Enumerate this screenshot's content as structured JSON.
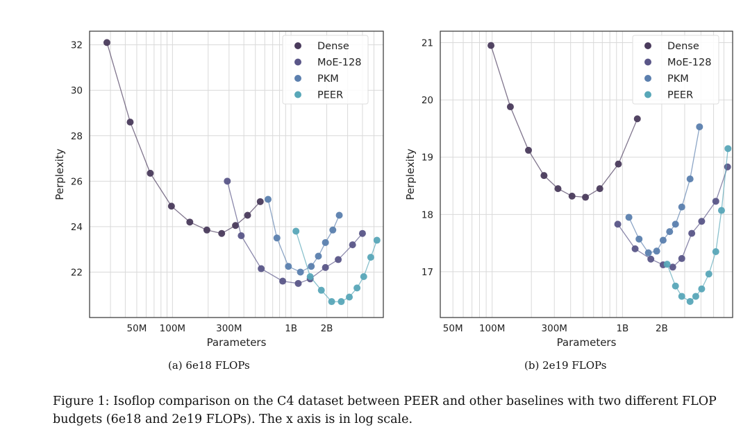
{
  "figure": {
    "caption_label": "Figure 1:",
    "caption_text": "Isoflop comparison on the C4 dataset between PEER and other baselines with two different FLOP budgets (6e18 and 2e19 FLOPs). The x axis is in log scale."
  },
  "colors": {
    "Dense": "#4a3b5c",
    "MoE-128": "#5a5688",
    "PKM": "#5b7fae",
    "PEER": "#58a7b8",
    "grid": "#d9d9d9",
    "axis": "#333333"
  },
  "chart_data": [
    {
      "type": "line",
      "subcaption": "(a) 6e18 FLOPs",
      "xlabel": "Parameters",
      "ylabel": "Perplexity",
      "xscale": "log",
      "xlim": [
        20000000,
        6000000000
      ],
      "ylim": [
        20,
        32.6
      ],
      "x_ticks": [
        {
          "value": 50000000,
          "label": "50M"
        },
        {
          "value": 100000000,
          "label": "100M"
        },
        {
          "value": 300000000,
          "label": "300M"
        },
        {
          "value": 1000000000,
          "label": "1B"
        },
        {
          "value": 2000000000,
          "label": "2B"
        }
      ],
      "y_ticks": [
        22,
        24,
        26,
        28,
        30,
        32
      ],
      "grid": true,
      "legend_position": "top-right",
      "series": [
        {
          "name": "Dense",
          "points": [
            [
              28000000,
              32.1
            ],
            [
              44000000,
              28.6
            ],
            [
              65000000,
              26.35
            ],
            [
              98000000,
              24.9
            ],
            [
              140000000,
              24.2
            ],
            [
              195000000,
              23.85
            ],
            [
              260000000,
              23.7
            ],
            [
              340000000,
              24.05
            ],
            [
              430000000,
              24.5
            ],
            [
              550000000,
              25.1
            ]
          ]
        },
        {
          "name": "MoE-128",
          "points": [
            [
              290000000,
              26.0
            ],
            [
              380000000,
              23.6
            ],
            [
              560000000,
              22.15
            ],
            [
              850000000,
              21.6
            ],
            [
              1150000000,
              21.5
            ],
            [
              1450000000,
              21.7
            ],
            [
              1950000000,
              22.2
            ],
            [
              2500000000,
              22.55
            ],
            [
              3300000000,
              23.2
            ],
            [
              4000000000,
              23.7
            ]
          ]
        },
        {
          "name": "PKM",
          "points": [
            [
              640000000,
              25.2
            ],
            [
              760000000,
              23.5
            ],
            [
              950000000,
              22.25
            ],
            [
              1200000000,
              22.0
            ],
            [
              1480000000,
              22.25
            ],
            [
              1700000000,
              22.7
            ],
            [
              1950000000,
              23.3
            ],
            [
              2250000000,
              23.85
            ],
            [
              2550000000,
              24.5
            ]
          ]
        },
        {
          "name": "PEER",
          "points": [
            [
              1100000000,
              23.8
            ],
            [
              1450000000,
              21.8
            ],
            [
              1800000000,
              21.2
            ],
            [
              2200000000,
              20.7
            ],
            [
              2650000000,
              20.7
            ],
            [
              3100000000,
              20.9
            ],
            [
              3600000000,
              21.3
            ],
            [
              4100000000,
              21.8
            ],
            [
              4700000000,
              22.65
            ],
            [
              5300000000,
              23.4
            ]
          ]
        }
      ]
    },
    {
      "type": "line",
      "subcaption": "(b) 2e19 FLOPs",
      "xlabel": "Parameters",
      "ylabel": "Perplexity",
      "xscale": "log",
      "xlim": [
        40000000,
        7000000000
      ],
      "ylim": [
        16.2,
        21.2
      ],
      "x_ticks": [
        {
          "value": 50000000,
          "label": "50M"
        },
        {
          "value": 100000000,
          "label": "100M"
        },
        {
          "value": 300000000,
          "label": "300M"
        },
        {
          "value": 1000000000,
          "label": "1B"
        },
        {
          "value": 2000000000,
          "label": "2B"
        }
      ],
      "y_ticks": [
        17,
        18,
        19,
        20,
        21
      ],
      "grid": true,
      "legend_position": "top-right",
      "series": [
        {
          "name": "Dense",
          "points": [
            [
              98000000,
              20.95
            ],
            [
              138000000,
              19.88
            ],
            [
              190000000,
              19.12
            ],
            [
              250000000,
              18.68
            ],
            [
              320000000,
              18.45
            ],
            [
              410000000,
              18.32
            ],
            [
              520000000,
              18.3
            ],
            [
              670000000,
              18.45
            ],
            [
              930000000,
              18.88
            ],
            [
              1300000000,
              19.67
            ]
          ]
        },
        {
          "name": "MoE-128",
          "points": [
            [
              920000000,
              17.83
            ],
            [
              1250000000,
              17.4
            ],
            [
              1650000000,
              17.22
            ],
            [
              2050000000,
              17.12
            ],
            [
              2430000000,
              17.08
            ],
            [
              2850000000,
              17.23
            ],
            [
              3400000000,
              17.67
            ],
            [
              4050000000,
              17.88
            ],
            [
              5200000000,
              18.23
            ],
            [
              6400000000,
              18.83
            ]
          ]
        },
        {
          "name": "PKM",
          "points": [
            [
              1120000000,
              17.95
            ],
            [
              1340000000,
              17.57
            ],
            [
              1580000000,
              17.33
            ],
            [
              1830000000,
              17.36
            ],
            [
              2050000000,
              17.55
            ],
            [
              2300000000,
              17.7
            ],
            [
              2550000000,
              17.83
            ],
            [
              2850000000,
              18.13
            ],
            [
              3300000000,
              18.62
            ],
            [
              3900000000,
              19.53
            ]
          ]
        },
        {
          "name": "PEER",
          "points": [
            [
              2200000000,
              17.13
            ],
            [
              2550000000,
              16.75
            ],
            [
              2850000000,
              16.57
            ],
            [
              3300000000,
              16.48
            ],
            [
              3650000000,
              16.57
            ],
            [
              4050000000,
              16.7
            ],
            [
              4600000000,
              16.96
            ],
            [
              5200000000,
              17.35
            ],
            [
              5750000000,
              18.07
            ],
            [
              6450000000,
              19.15
            ]
          ]
        }
      ]
    }
  ]
}
